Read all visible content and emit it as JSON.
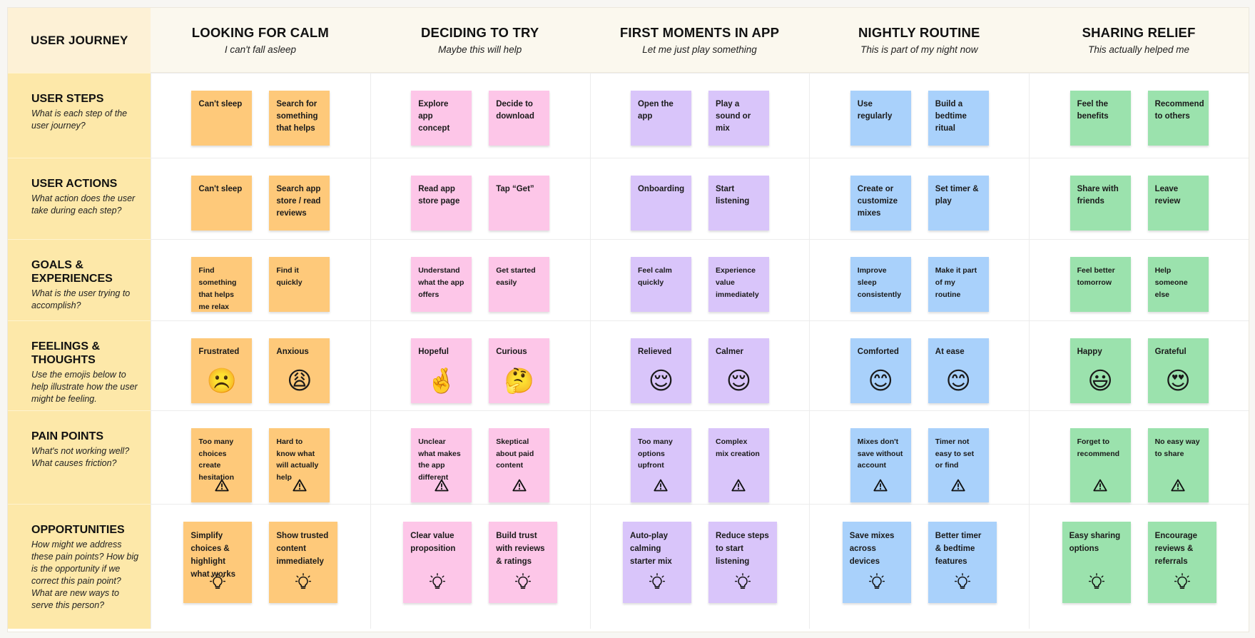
{
  "corner_label": "USER JOURNEY",
  "stages": [
    {
      "title": "LOOKING FOR CALM",
      "subtitle": "I can't fall asleep",
      "color": "#fec97a"
    },
    {
      "title": "DECIDING TO TRY",
      "subtitle": "Maybe this will help",
      "color": "#fdc6e8"
    },
    {
      "title": "FIRST MOMENTS IN APP",
      "subtitle": "Let me just play something",
      "color": "#d9c5fa"
    },
    {
      "title": "NIGHTLY ROUTINE",
      "subtitle": "This is part of my night now",
      "color": "#a9d1fb"
    },
    {
      "title": "SHARING RELIEF",
      "subtitle": "This actually helped me",
      "color": "#9be2ad"
    }
  ],
  "rows": [
    {
      "title": "USER STEPS",
      "description": "What is each step of the user journey?",
      "note_icon": null
    },
    {
      "title": "USER ACTIONS",
      "description": "What action does the user take during each step?",
      "note_icon": null
    },
    {
      "title": "GOALS & EXPERIENCES",
      "description": "What is the user trying to accomplish?",
      "note_icon": null
    },
    {
      "title": "FEELINGS & THOUGHTS",
      "description": "Use the emojis below to help illustrate how the user might be feeling.",
      "note_icon": "emoji"
    },
    {
      "title": "PAIN POINTS",
      "description": "What's not working well? What causes friction?",
      "note_icon": "warning-icon"
    },
    {
      "title": "OPPORTUNITIES",
      "description": "How might we address these pain points? How big is the opportunity if we correct this pain point? What are new ways to serve this person?",
      "note_icon": "lightbulb-icon"
    }
  ],
  "cells": [
    [
      [
        {
          "text": "Can't sleep"
        },
        {
          "text": "Search for something that helps"
        }
      ],
      [
        {
          "text": "Explore app concept"
        },
        {
          "text": "Decide to download"
        }
      ],
      [
        {
          "text": "Open the app"
        },
        {
          "text": "Play a sound or mix"
        }
      ],
      [
        {
          "text": "Use regularly"
        },
        {
          "text": "Build a bedtime ritual"
        }
      ],
      [
        {
          "text": "Feel the benefits"
        },
        {
          "text": "Recommend to others"
        }
      ]
    ],
    [
      [
        {
          "text": "Can't sleep"
        },
        {
          "text": "Search app store / read reviews"
        }
      ],
      [
        {
          "text": "Read app store page"
        },
        {
          "text": "Tap “Get”"
        }
      ],
      [
        {
          "text": "Onboarding"
        },
        {
          "text": "Start listening"
        }
      ],
      [
        {
          "text": "Create or customize mixes"
        },
        {
          "text": "Set timer & play"
        }
      ],
      [
        {
          "text": "Share with friends"
        },
        {
          "text": "Leave review"
        }
      ]
    ],
    [
      [
        {
          "text": "Find something that helps me relax"
        },
        {
          "text": "Find it quickly"
        }
      ],
      [
        {
          "text": "Understand what the app offers"
        },
        {
          "text": "Get started easily"
        }
      ],
      [
        {
          "text": "Feel calm quickly"
        },
        {
          "text": "Experience value immediately"
        }
      ],
      [
        {
          "text": "Improve sleep consistently"
        },
        {
          "text": "Make it part of my routine"
        }
      ],
      [
        {
          "text": "Feel better tomorrow"
        },
        {
          "text": "Help someone else"
        }
      ]
    ],
    [
      [
        {
          "text": "Frustrated",
          "emoji": "☹️"
        },
        {
          "text": "Anxious",
          "emoji": "😩"
        }
      ],
      [
        {
          "text": "Hopeful",
          "emoji": "🤞"
        },
        {
          "text": "Curious",
          "emoji": "🤔"
        }
      ],
      [
        {
          "text": "Relieved",
          "emoji": "😌"
        },
        {
          "text": "Calmer",
          "emoji": "😌"
        }
      ],
      [
        {
          "text": "Comforted",
          "emoji": "😊"
        },
        {
          "text": "At ease",
          "emoji": "😊"
        }
      ],
      [
        {
          "text": "Happy",
          "emoji": "😃"
        },
        {
          "text": "Grateful",
          "emoji": "😍"
        }
      ]
    ],
    [
      [
        {
          "text": "Too many choices create hesitation"
        },
        {
          "text": "Hard to know what will actually help"
        }
      ],
      [
        {
          "text": "Unclear what makes the app different"
        },
        {
          "text": "Skeptical about paid content"
        }
      ],
      [
        {
          "text": "Too many options upfront"
        },
        {
          "text": "Complex mix creation"
        }
      ],
      [
        {
          "text": "Mixes don't save without account"
        },
        {
          "text": "Timer not easy to set or find"
        }
      ],
      [
        {
          "text": "Forget to recommend"
        },
        {
          "text": "No easy way to share"
        }
      ]
    ],
    [
      [
        {
          "text": "Simplify choices & highlight what works"
        },
        {
          "text": "Show trusted content immediately"
        }
      ],
      [
        {
          "text": "Clear value proposition"
        },
        {
          "text": "Build trust with reviews & ratings"
        }
      ],
      [
        {
          "text": "Auto-play calming starter mix"
        },
        {
          "text": "Reduce steps to start listening"
        }
      ],
      [
        {
          "text": "Save mixes across devices"
        },
        {
          "text": "Better timer & bedtime features"
        }
      ],
      [
        {
          "text": "Easy sharing options"
        },
        {
          "text": "Encourage reviews & referrals"
        }
      ]
    ]
  ]
}
